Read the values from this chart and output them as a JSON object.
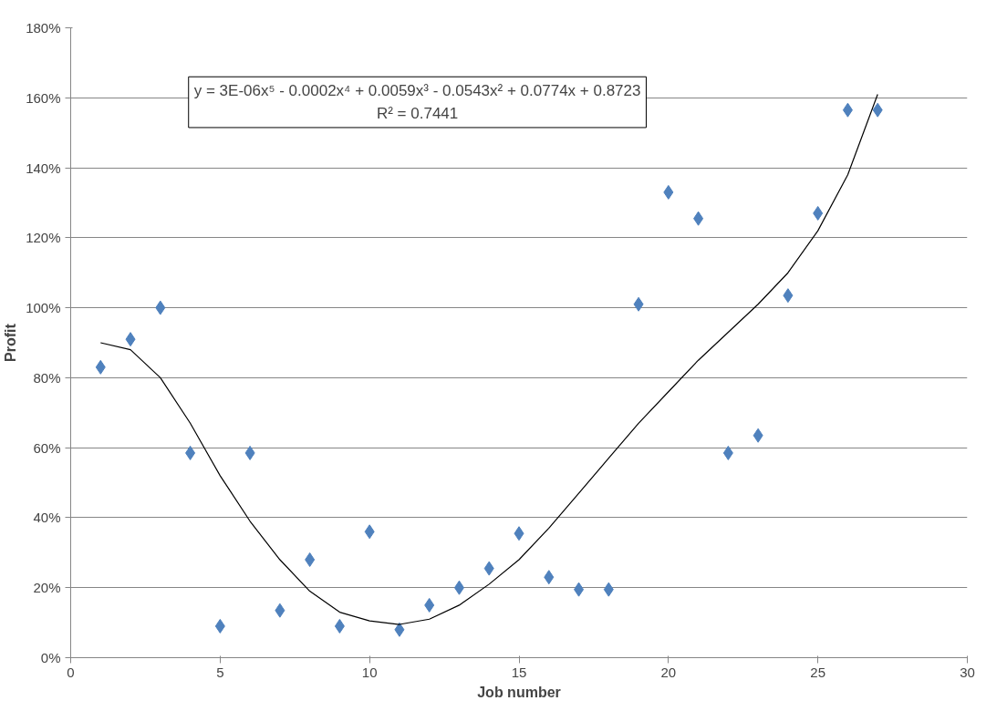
{
  "chart_data": {
    "type": "scatter",
    "xlabel": "Job number",
    "ylabel": "Profit",
    "xlim": [
      0,
      30
    ],
    "xticks": [
      0,
      5,
      10,
      15,
      20,
      25,
      30
    ],
    "ylim": [
      0,
      180
    ],
    "yticks": [
      {
        "value": 0,
        "label": "0%"
      },
      {
        "value": 20,
        "label": "20%"
      },
      {
        "value": 40,
        "label": "40%"
      },
      {
        "value": 60,
        "label": "60%"
      },
      {
        "value": 80,
        "label": "80%"
      },
      {
        "value": 100,
        "label": "100%"
      },
      {
        "value": 120,
        "label": "120%"
      },
      {
        "value": 140,
        "label": "140%"
      },
      {
        "value": 160,
        "label": "160%"
      },
      {
        "value": 180,
        "label": "180%"
      }
    ],
    "grid": "y",
    "annotations": [
      "y = 3E-06x⁵ - 0.0002x⁴ + 0.0059x³ - 0.0543x² + 0.0774x + 0.8723",
      "R² = 0.7441"
    ],
    "series": [
      {
        "marker": "diamond",
        "color": "#4f81bd",
        "x": [
          1,
          2,
          3,
          4,
          5,
          6,
          7,
          8,
          9,
          10,
          11,
          12,
          13,
          14,
          15,
          16,
          17,
          18,
          19,
          20,
          21,
          22,
          23,
          24,
          25,
          26,
          27
        ],
        "values": [
          83,
          91,
          100,
          58.5,
          9,
          58.5,
          13.5,
          28,
          9,
          36,
          8,
          15,
          20,
          25.5,
          35.5,
          23,
          19.5,
          19.5,
          101,
          133,
          125.5,
          58.5,
          63.5,
          103.5,
          127,
          156.5,
          156.5
        ]
      },
      {
        "type": "line",
        "color": "#000000",
        "line_style": "solid",
        "x": [
          1,
          2,
          3,
          4,
          5,
          6,
          7,
          8,
          9,
          10,
          11,
          12,
          13,
          14,
          15,
          16,
          17,
          18,
          19,
          20,
          21,
          22,
          23,
          24,
          25,
          26,
          27
        ],
        "values": [
          90,
          88,
          80,
          67,
          52,
          39,
          28,
          19,
          13,
          10.5,
          9.5,
          11,
          15,
          21,
          28,
          37,
          47,
          57,
          67,
          76,
          85,
          93,
          101,
          110,
          122,
          138,
          161
        ]
      }
    ]
  }
}
